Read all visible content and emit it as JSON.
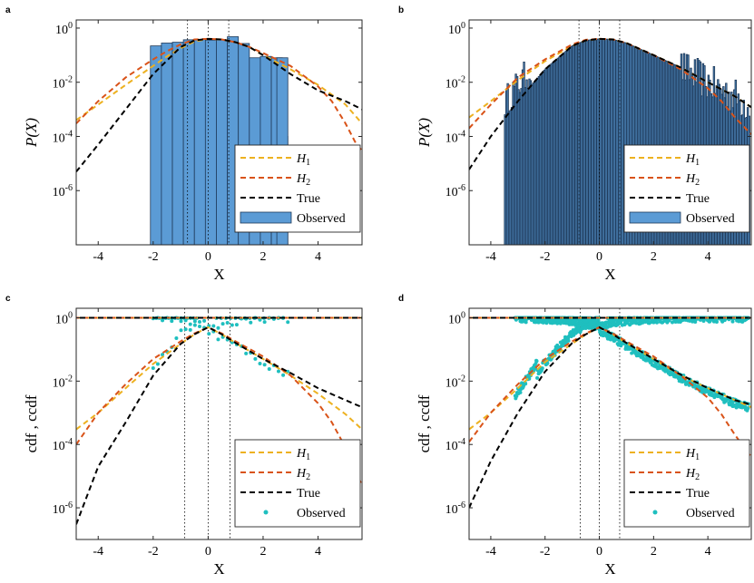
{
  "figure": {
    "panels": [
      "a",
      "b",
      "c",
      "d"
    ]
  },
  "colors": {
    "H1": "#EDB120",
    "H2": "#D95319",
    "True": "#000000",
    "bar_fill": "#5B9BD5",
    "bar_edge": "#1F3A5A",
    "observed_points": "#1FBFBF",
    "axis": "#262626"
  },
  "chart_data": [
    {
      "panel": "a",
      "type": "bar",
      "xlabel": "X",
      "ylabel": "P(X)",
      "xlim": [
        -4.8,
        5.6
      ],
      "ylim_log10": [
        -8,
        0.3
      ],
      "xticks": [
        -4,
        -2,
        0,
        2,
        4
      ],
      "xtick_labels": [
        "-4",
        "-2",
        "0",
        "2",
        "4"
      ],
      "yticks_log10": [
        0,
        -2,
        -4,
        -6
      ],
      "ytick_labels": [
        "10^0",
        "10^-2",
        "10^-4",
        "10^-6"
      ],
      "vlines": [
        -0.75,
        0,
        0.75
      ],
      "legend": {
        "position": "lower-right",
        "entries": [
          "H_1",
          "H_2",
          "True",
          "Observed"
        ]
      },
      "bars": [
        {
          "x0": -2.1,
          "x1": -1.7,
          "v": 0.22
        },
        {
          "x0": -1.7,
          "x1": -1.3,
          "v": 0.28
        },
        {
          "x0": -1.3,
          "x1": -0.9,
          "v": 0.3
        },
        {
          "x0": -0.9,
          "x1": -0.5,
          "v": 0.37
        },
        {
          "x0": -0.5,
          "x1": -0.1,
          "v": 0.38
        },
        {
          "x0": -0.1,
          "x1": 0.3,
          "v": 0.36
        },
        {
          "x0": 0.3,
          "x1": 0.7,
          "v": 0.37
        },
        {
          "x0": 0.7,
          "x1": 1.1,
          "v": 0.48
        },
        {
          "x0": 1.1,
          "x1": 1.5,
          "v": 0.27
        },
        {
          "x0": 1.5,
          "x1": 1.9,
          "v": 0.08
        },
        {
          "x0": 1.9,
          "x1": 2.3,
          "v": 0.09
        },
        {
          "x0": 2.3,
          "x1": 2.7,
          "v": 0.08
        },
        {
          "x0": 2.7,
          "x1": 2.9,
          "v": 0.0001
        },
        {
          "x0": 2.5,
          "x1": 2.9,
          "v": 0.08
        }
      ],
      "series": [
        {
          "name": "H1",
          "style": "dashed",
          "x": [
            -4.8,
            -4,
            -3,
            -2,
            -1.5,
            -1,
            -0.5,
            0,
            0.5,
            1,
            1.5,
            2,
            3,
            4,
            5,
            5.6
          ],
          "y": [
            0.0004,
            0.0015,
            0.008,
            0.04,
            0.09,
            0.18,
            0.32,
            0.4,
            0.38,
            0.3,
            0.2,
            0.1,
            0.03,
            0.008,
            0.0015,
            0.0003
          ]
        },
        {
          "name": "H2",
          "style": "dashed",
          "x": [
            -4.8,
            -4,
            -3,
            -2,
            -1.5,
            -1,
            -0.5,
            0,
            0.5,
            1,
            1.5,
            2,
            3,
            4,
            4.5,
            5,
            5.4,
            5.6
          ],
          "y": [
            0.0003,
            0.002,
            0.015,
            0.07,
            0.14,
            0.25,
            0.38,
            0.4,
            0.38,
            0.3,
            0.2,
            0.12,
            0.04,
            0.007,
            0.002,
            0.0003,
            5e-05,
            3e-05
          ]
        },
        {
          "name": "True",
          "style": "dashed",
          "x": [
            -4.8,
            -4,
            -3,
            -2,
            -1,
            -0.5,
            0,
            0.5,
            1,
            1.5,
            2,
            3,
            4,
            5,
            5.6
          ],
          "y": [
            5e-06,
            5e-05,
            0.001,
            0.02,
            0.2,
            0.35,
            0.4,
            0.38,
            0.3,
            0.2,
            0.1,
            0.02,
            0.005,
            0.002,
            0.001
          ]
        }
      ]
    },
    {
      "panel": "b",
      "type": "bar",
      "xlabel": "X",
      "ylabel": "P(X)",
      "xlim": [
        -4.8,
        5.6
      ],
      "ylim_log10": [
        -8,
        0.3
      ],
      "xticks": [
        -4,
        -2,
        0,
        2,
        4
      ],
      "xtick_labels": [
        "-4",
        "-2",
        "0",
        "2",
        "4"
      ],
      "yticks_log10": [
        0,
        -2,
        -4,
        -6
      ],
      "ytick_labels": [
        "10^0",
        "10^-2",
        "10^-4",
        "10^-6"
      ],
      "vlines": [
        -0.75,
        0,
        0.75
      ],
      "legend": {
        "position": "lower-right",
        "entries": [
          "H_1",
          "H_2",
          "True",
          "Observed"
        ]
      },
      "histogram": {
        "x_start": -3.5,
        "x_end": 5.5,
        "bin_width": 0.05,
        "envelope": "true-density",
        "noise_tail_from": 3.0
      },
      "series": [
        {
          "name": "H1",
          "style": "dashed",
          "x": [
            -4.8,
            -4,
            -3,
            -2,
            -1,
            -0.5,
            0,
            0.5,
            1,
            2,
            3,
            4,
            5,
            5.6
          ],
          "y": [
            0.0005,
            0.002,
            0.012,
            0.06,
            0.22,
            0.35,
            0.4,
            0.38,
            0.28,
            0.1,
            0.035,
            0.01,
            0.003,
            0.0012
          ]
        },
        {
          "name": "H2",
          "style": "dashed",
          "x": [
            -4.8,
            -4,
            -3,
            -2,
            -1,
            -0.5,
            0,
            0.5,
            1,
            2,
            3,
            4,
            4.5,
            5,
            5.6
          ],
          "y": [
            0.0002,
            0.0015,
            0.015,
            0.07,
            0.25,
            0.37,
            0.4,
            0.38,
            0.28,
            0.1,
            0.03,
            0.006,
            0.002,
            0.0005,
            0.00012
          ]
        },
        {
          "name": "True",
          "style": "dashed",
          "x": [
            -4.8,
            -4,
            -3,
            -2,
            -1,
            -0.5,
            0,
            0.5,
            1,
            2,
            3,
            4,
            5,
            5.6
          ],
          "y": [
            6e-06,
            0.0001,
            0.002,
            0.03,
            0.22,
            0.35,
            0.4,
            0.38,
            0.28,
            0.1,
            0.035,
            0.01,
            0.003,
            0.0012
          ]
        }
      ]
    },
    {
      "panel": "c",
      "type": "scatter",
      "xlabel": "X",
      "ylabel": "cdf , ccdf",
      "xlim": [
        -4.8,
        5.6
      ],
      "ylim_log10": [
        -7,
        0.3
      ],
      "xticks": [
        -4,
        -2,
        0,
        2,
        4
      ],
      "xtick_labels": [
        "-4",
        "-2",
        "0",
        "2",
        "4"
      ],
      "yticks_log10": [
        0,
        -2,
        -4,
        -6
      ],
      "ytick_labels": [
        "10^0",
        "10^-2",
        "10^-4",
        "10^-6"
      ],
      "vlines": [
        -0.85,
        0,
        0.8
      ],
      "legend": {
        "position": "lower-right",
        "entries": [
          "H_1",
          "H_2",
          "True",
          "Observed"
        ]
      },
      "points": {
        "count": 30,
        "x_range": [
          -2.0,
          2.9
        ]
      },
      "series": [
        {
          "name": "H1",
          "style": "dashed",
          "x": [
            -4.8,
            -4,
            -3,
            -2,
            -1,
            -0.5,
            0,
            0.5,
            1,
            2,
            3,
            4,
            5,
            5.6
          ],
          "y": [
            0.0003,
            0.001,
            0.006,
            0.035,
            0.15,
            0.3,
            0.5,
            0.3,
            0.16,
            0.05,
            0.015,
            0.004,
            0.0009,
            0.0003
          ]
        },
        {
          "name": "H2",
          "style": "dashed",
          "x": [
            -4.8,
            -4,
            -3,
            -2,
            -1,
            -0.5,
            0,
            0.5,
            1,
            2,
            3,
            4,
            4.5,
            5,
            5.6
          ],
          "y": [
            0.0001,
            0.001,
            0.008,
            0.05,
            0.18,
            0.32,
            0.5,
            0.32,
            0.18,
            0.06,
            0.015,
            0.002,
            0.0005,
            8e-05,
            5e-06
          ]
        },
        {
          "name": "True",
          "style": "dashed",
          "x": [
            -4.8,
            -4,
            -3,
            -2,
            -1,
            -0.5,
            0,
            0.5,
            1,
            2,
            3,
            4,
            5,
            5.6
          ],
          "y": [
            3e-07,
            2e-05,
            0.0005,
            0.015,
            0.15,
            0.3,
            0.5,
            0.3,
            0.16,
            0.05,
            0.018,
            0.006,
            0.0025,
            0.0015
          ]
        }
      ]
    },
    {
      "panel": "d",
      "type": "scatter",
      "xlabel": "X",
      "ylabel": "cdf , ccdf",
      "xlim": [
        -4.8,
        5.6
      ],
      "ylim_log10": [
        -7,
        0.3
      ],
      "xticks": [
        -4,
        -2,
        0,
        2,
        4
      ],
      "xtick_labels": [
        "-4",
        "-2",
        "0",
        "2",
        "4"
      ],
      "yticks_log10": [
        0,
        -2,
        -4,
        -6
      ],
      "ytick_labels": [
        "10^0",
        "10^-2",
        "10^-4",
        "10^-6"
      ],
      "vlines": [
        -0.7,
        0,
        0.75
      ],
      "legend": {
        "position": "lower-right",
        "entries": [
          "H_1",
          "H_2",
          "True",
          "Observed"
        ]
      },
      "points": {
        "count": 500,
        "x_range": [
          -3.1,
          5.5
        ]
      },
      "series": [
        {
          "name": "H1",
          "style": "dashed",
          "x": [
            -4.8,
            -4,
            -3,
            -2,
            -1,
            -0.5,
            0,
            0.5,
            1,
            2,
            3,
            4,
            5,
            5.6
          ],
          "y": [
            0.0003,
            0.001,
            0.006,
            0.04,
            0.15,
            0.3,
            0.5,
            0.3,
            0.16,
            0.05,
            0.015,
            0.006,
            0.0025,
            0.0015
          ]
        },
        {
          "name": "H2",
          "style": "dashed",
          "x": [
            -4.8,
            -4,
            -3,
            -2,
            -1,
            -0.5,
            0,
            0.5,
            1,
            2,
            3,
            4,
            4.5,
            5,
            5.6
          ],
          "y": [
            0.00012,
            0.001,
            0.008,
            0.05,
            0.18,
            0.32,
            0.5,
            0.32,
            0.18,
            0.06,
            0.015,
            0.003,
            0.0009,
            0.0002,
            4e-05
          ]
        },
        {
          "name": "True",
          "style": "dashed",
          "x": [
            -4.8,
            -4,
            -3,
            -2,
            -1,
            -0.5,
            0,
            0.5,
            1,
            2,
            3,
            4,
            5,
            5.6
          ],
          "y": [
            1e-06,
            3e-05,
            0.001,
            0.02,
            0.16,
            0.3,
            0.5,
            0.3,
            0.16,
            0.05,
            0.016,
            0.006,
            0.0025,
            0.0018
          ]
        }
      ]
    }
  ]
}
